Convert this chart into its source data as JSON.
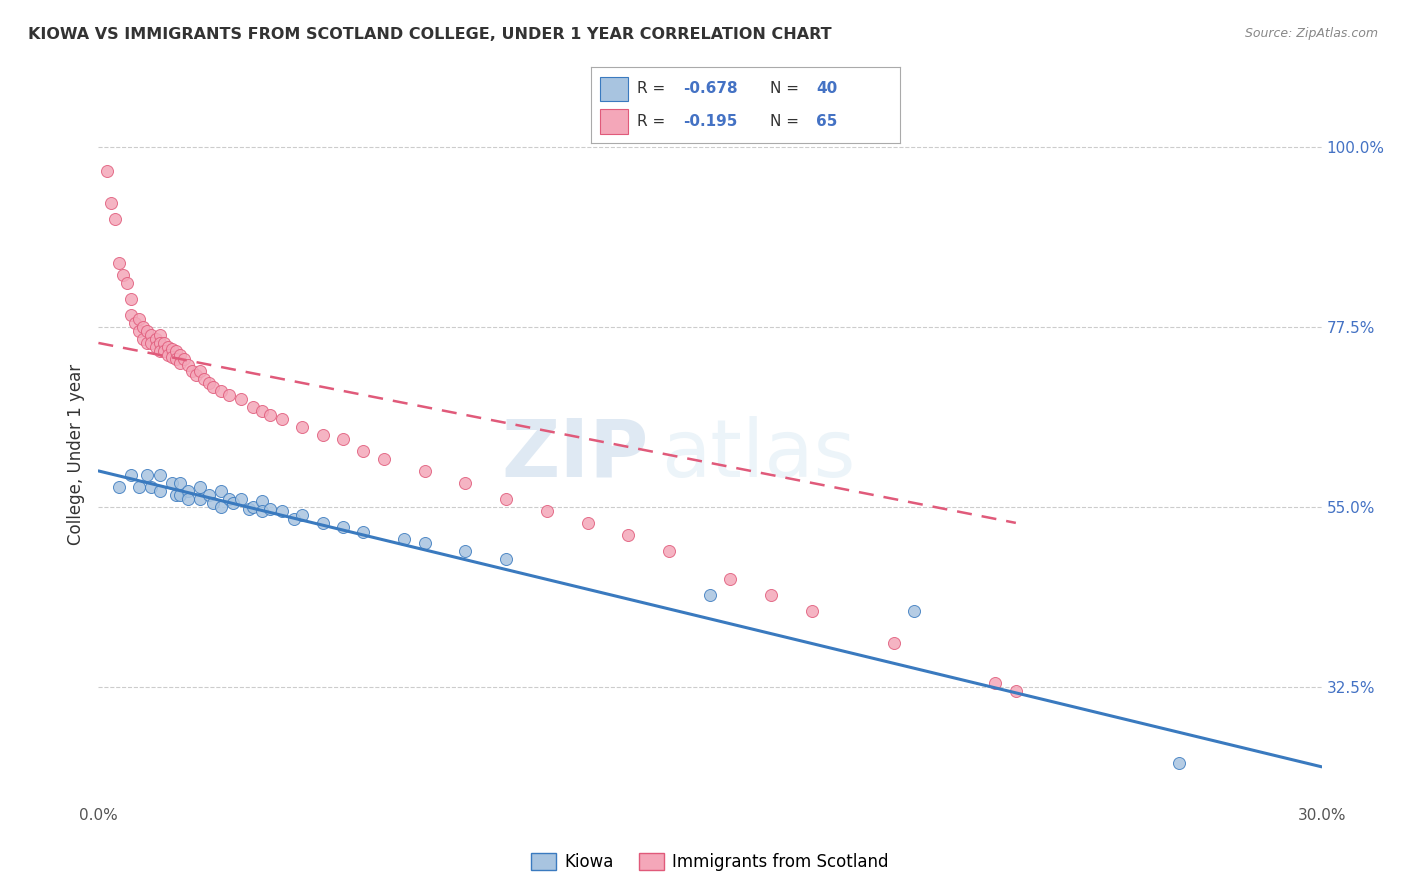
{
  "title": "KIOWA VS IMMIGRANTS FROM SCOTLAND COLLEGE, UNDER 1 YEAR CORRELATION CHART",
  "source": "Source: ZipAtlas.com",
  "ylabel": "College, Under 1 year",
  "xmin": 0.0,
  "xmax": 0.3,
  "ymin": 0.18,
  "ymax": 1.05,
  "yticks": [
    0.325,
    0.55,
    0.775,
    1.0
  ],
  "ytick_labels": [
    "32.5%",
    "55.0%",
    "77.5%",
    "100.0%"
  ],
  "xticks": [
    0.0,
    0.05,
    0.1,
    0.15,
    0.2,
    0.25,
    0.3
  ],
  "xtick_labels": [
    "0.0%",
    "",
    "",
    "",
    "",
    "",
    "30.0%"
  ],
  "color_blue": "#a8c4e0",
  "color_pink": "#f4a7b9",
  "line_blue": "#3a7abf",
  "line_pink": "#e05a7a",
  "watermark_zip": "ZIP",
  "watermark_atlas": "atlas",
  "kiowa_x": [
    0.005,
    0.008,
    0.01,
    0.012,
    0.013,
    0.015,
    0.015,
    0.018,
    0.019,
    0.02,
    0.02,
    0.022,
    0.022,
    0.025,
    0.025,
    0.027,
    0.028,
    0.03,
    0.03,
    0.032,
    0.033,
    0.035,
    0.037,
    0.038,
    0.04,
    0.04,
    0.042,
    0.045,
    0.048,
    0.05,
    0.055,
    0.06,
    0.065,
    0.075,
    0.08,
    0.09,
    0.1,
    0.15,
    0.2,
    0.265
  ],
  "kiowa_y": [
    0.575,
    0.59,
    0.575,
    0.59,
    0.575,
    0.59,
    0.57,
    0.58,
    0.565,
    0.58,
    0.565,
    0.57,
    0.56,
    0.575,
    0.56,
    0.565,
    0.555,
    0.57,
    0.55,
    0.56,
    0.555,
    0.56,
    0.548,
    0.55,
    0.558,
    0.545,
    0.548,
    0.545,
    0.535,
    0.54,
    0.53,
    0.525,
    0.518,
    0.51,
    0.505,
    0.495,
    0.485,
    0.44,
    0.42,
    0.23
  ],
  "scotland_x": [
    0.002,
    0.003,
    0.004,
    0.005,
    0.006,
    0.007,
    0.008,
    0.008,
    0.009,
    0.01,
    0.01,
    0.011,
    0.011,
    0.012,
    0.012,
    0.013,
    0.013,
    0.014,
    0.014,
    0.015,
    0.015,
    0.015,
    0.016,
    0.016,
    0.017,
    0.017,
    0.018,
    0.018,
    0.019,
    0.019,
    0.02,
    0.02,
    0.021,
    0.022,
    0.023,
    0.024,
    0.025,
    0.026,
    0.027,
    0.028,
    0.03,
    0.032,
    0.035,
    0.038,
    0.04,
    0.042,
    0.045,
    0.05,
    0.055,
    0.06,
    0.065,
    0.07,
    0.08,
    0.09,
    0.1,
    0.11,
    0.12,
    0.13,
    0.14,
    0.155,
    0.165,
    0.175,
    0.195,
    0.22,
    0.225
  ],
  "scotland_y": [
    0.97,
    0.93,
    0.91,
    0.855,
    0.84,
    0.83,
    0.79,
    0.81,
    0.78,
    0.77,
    0.785,
    0.775,
    0.76,
    0.77,
    0.755,
    0.765,
    0.755,
    0.76,
    0.75,
    0.765,
    0.755,
    0.745,
    0.755,
    0.745,
    0.75,
    0.74,
    0.748,
    0.738,
    0.745,
    0.735,
    0.74,
    0.73,
    0.735,
    0.728,
    0.72,
    0.715,
    0.72,
    0.71,
    0.705,
    0.7,
    0.695,
    0.69,
    0.685,
    0.675,
    0.67,
    0.665,
    0.66,
    0.65,
    0.64,
    0.635,
    0.62,
    0.61,
    0.595,
    0.58,
    0.56,
    0.545,
    0.53,
    0.515,
    0.495,
    0.46,
    0.44,
    0.42,
    0.38,
    0.33,
    0.32
  ],
  "blue_line_x0": 0.0,
  "blue_line_y0": 0.595,
  "blue_line_x1": 0.3,
  "blue_line_y1": 0.225,
  "pink_line_x0": 0.0,
  "pink_line_y0": 0.755,
  "pink_line_x1": 0.225,
  "pink_line_y1": 0.53
}
